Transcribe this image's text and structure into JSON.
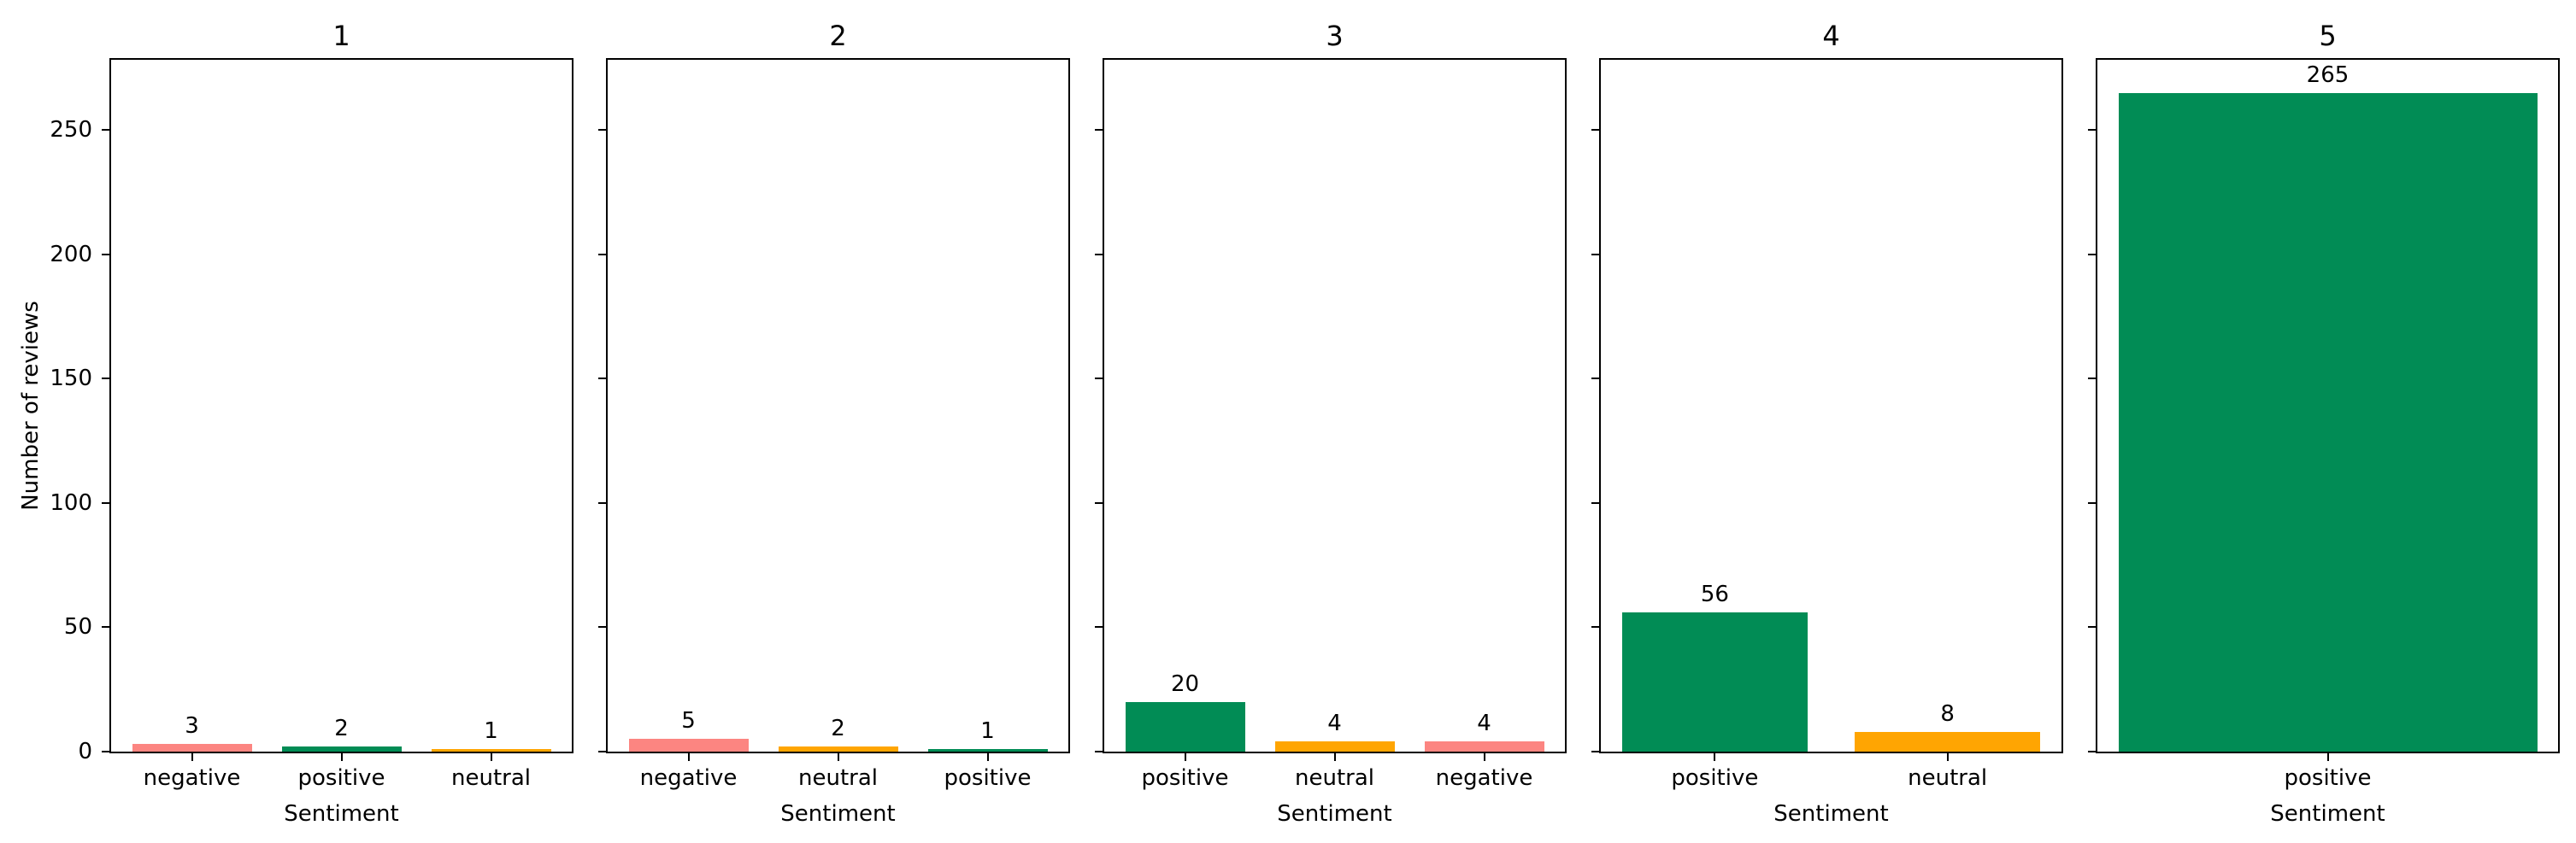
{
  "figure": {
    "ylabel": "Number of reviews",
    "xlabel": "Sentiment",
    "yticks": [
      0,
      50,
      100,
      150,
      200,
      250
    ],
    "ylim": [
      0,
      278.25
    ],
    "background": "#ffffff",
    "spine_color": "#000000",
    "sentiment_colors": {
      "positive": "#018C55",
      "negative": "#FC8581",
      "neutral": "#FFA502"
    }
  },
  "chart_data": [
    {
      "type": "bar",
      "title": "1",
      "categories": [
        "negative",
        "positive",
        "neutral"
      ],
      "values": [
        3,
        2,
        1
      ],
      "colors": [
        "#FC8581",
        "#018C55",
        "#FFA502"
      ],
      "xlabel": "Sentiment",
      "ylabel": "Number of reviews",
      "ylim": [
        0,
        278.25
      ],
      "grid": false,
      "legend": null
    },
    {
      "type": "bar",
      "title": "2",
      "categories": [
        "negative",
        "neutral",
        "positive"
      ],
      "values": [
        5,
        2,
        1
      ],
      "colors": [
        "#FC8581",
        "#FFA502",
        "#018C55"
      ],
      "xlabel": "Sentiment",
      "ylabel": "Number of reviews",
      "ylim": [
        0,
        278.25
      ],
      "grid": false,
      "legend": null
    },
    {
      "type": "bar",
      "title": "3",
      "categories": [
        "positive",
        "neutral",
        "negative"
      ],
      "values": [
        20,
        4,
        4
      ],
      "colors": [
        "#018C55",
        "#FFA502",
        "#FC8581"
      ],
      "xlabel": "Sentiment",
      "ylabel": "Number of reviews",
      "ylim": [
        0,
        278.25
      ],
      "grid": false,
      "legend": null
    },
    {
      "type": "bar",
      "title": "4",
      "categories": [
        "positive",
        "neutral"
      ],
      "values": [
        56,
        8
      ],
      "colors": [
        "#018C55",
        "#FFA502"
      ],
      "xlabel": "Sentiment",
      "ylabel": "Number of reviews",
      "ylim": [
        0,
        278.25
      ],
      "grid": false,
      "legend": null
    },
    {
      "type": "bar",
      "title": "5",
      "categories": [
        "positive"
      ],
      "values": [
        265
      ],
      "colors": [
        "#018C55"
      ],
      "xlabel": "Sentiment",
      "ylabel": "Number of reviews",
      "ylim": [
        0,
        278.25
      ],
      "grid": false,
      "legend": null
    }
  ]
}
